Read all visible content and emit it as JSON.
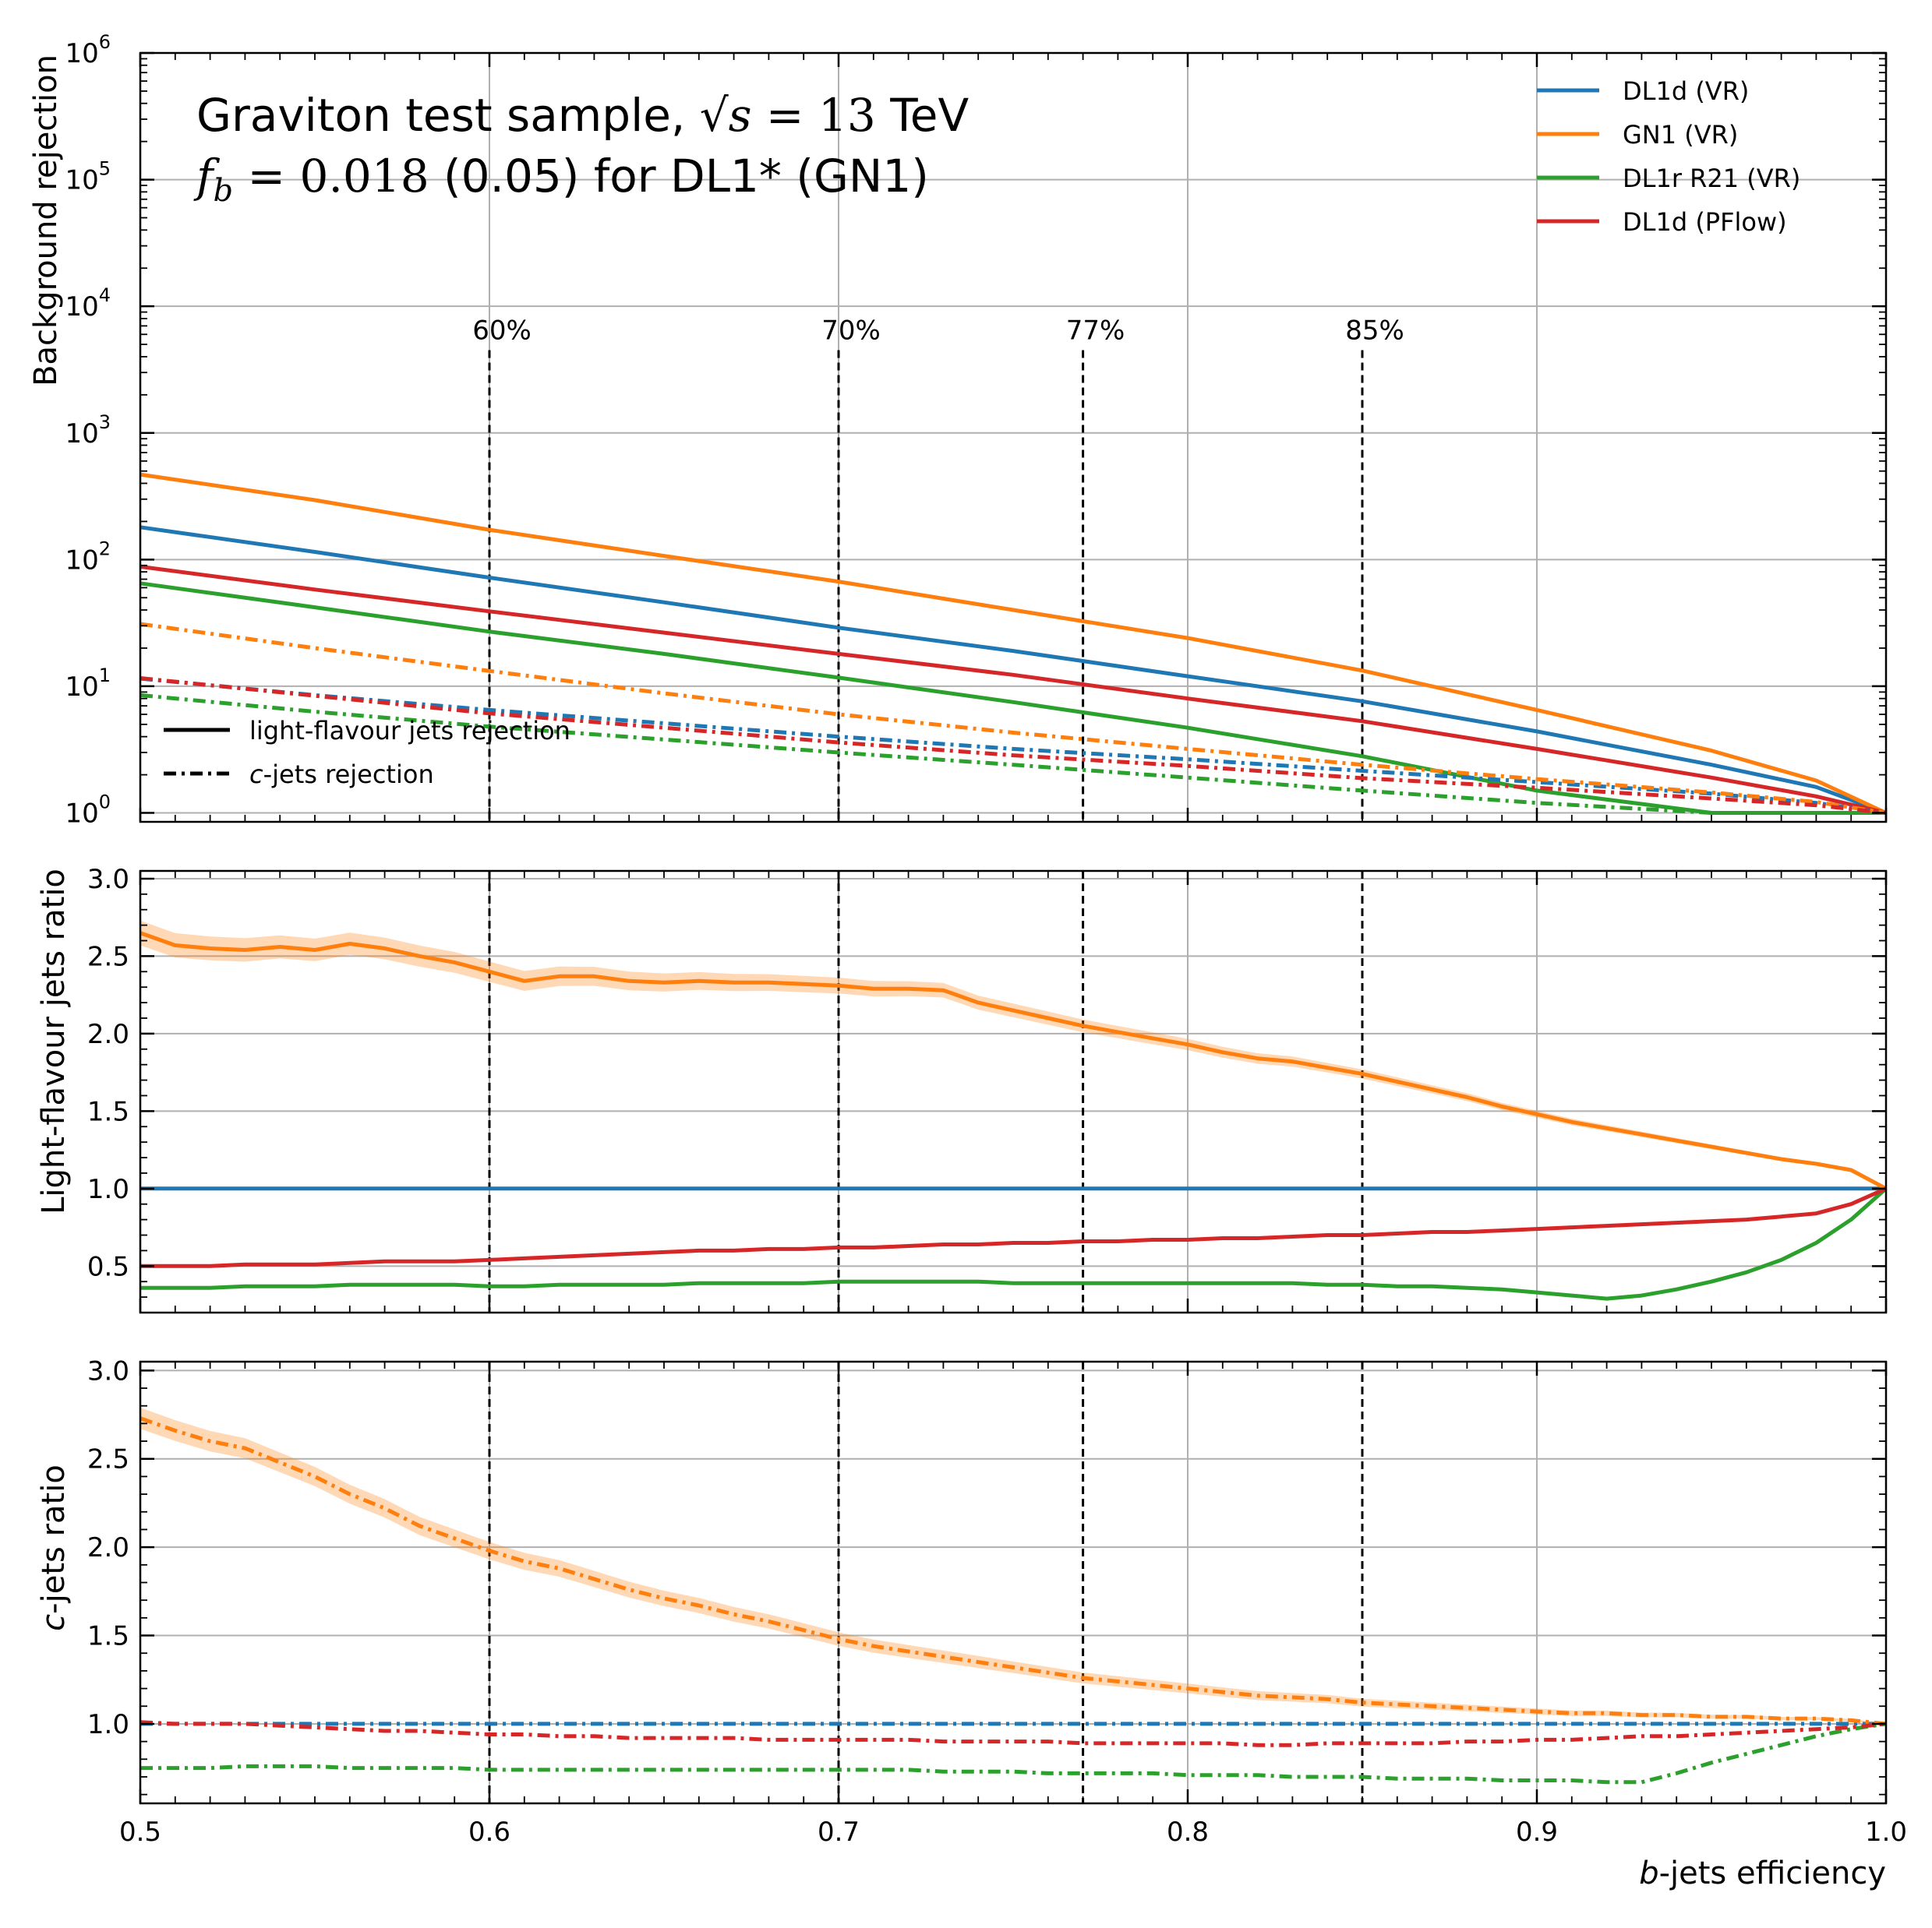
{
  "chart_data": [
    {
      "type": "line",
      "panel": "top",
      "title_lines": [
        "Graviton test sample, √s = 13 TeV",
        "f_b = 0.018 (0.05) for DL1* (GN1)"
      ],
      "xlabel": "",
      "ylabel": "Background rejection",
      "xlim": [
        0.5,
        1.0
      ],
      "ylim": [
        0.85,
        1000000
      ],
      "yscale": "log",
      "grid": true,
      "y_ticks": [
        "10^0",
        "10^1",
        "10^2",
        "10^3",
        "10^4",
        "10^5",
        "10^6"
      ],
      "working_points": [
        {
          "x": 0.6,
          "label": "60%"
        },
        {
          "x": 0.7,
          "label": "70%"
        },
        {
          "x": 0.77,
          "label": "77%"
        },
        {
          "x": 0.85,
          "label": "85%"
        }
      ],
      "legend": {
        "position": "top-right",
        "entries": [
          {
            "label": "DL1d (VR)",
            "color": "#1f77b4"
          },
          {
            "label": "GN1 (VR)",
            "color": "#ff7f0e"
          },
          {
            "label": "DL1r R21 (VR)",
            "color": "#2ca02c"
          },
          {
            "label": "DL1d (PFlow)",
            "color": "#d62728"
          }
        ]
      },
      "style_legend": {
        "position": "bottom-left",
        "entries": [
          {
            "label": "light-flavour jets rejection",
            "style": "solid"
          },
          {
            "label": "c-jets rejection",
            "style": "dashdot"
          }
        ]
      },
      "x": [
        0.5,
        0.55,
        0.6,
        0.65,
        0.7,
        0.75,
        0.8,
        0.85,
        0.9,
        0.95,
        0.98,
        1.0
      ],
      "series": [
        {
          "name": "DL1d (VR)",
          "style": "solid",
          "color": "#1f77b4",
          "values": [
            180,
            115,
            72,
            46,
            29,
            19,
            12,
            7.6,
            4.4,
            2.4,
            1.6,
            1.0
          ]
        },
        {
          "name": "GN1 (VR)",
          "style": "solid",
          "color": "#ff7f0e",
          "values": [
            470,
            295,
            172,
            107,
            67,
            40,
            24,
            13.3,
            6.5,
            3.1,
            1.8,
            1.0
          ]
        },
        {
          "name": "DL1r R21 (VR)",
          "style": "solid",
          "color": "#2ca02c",
          "values": [
            65,
            42,
            27,
            18,
            11.7,
            7.5,
            4.7,
            2.8,
            1.5,
            1.0,
            1.0,
            1.0
          ]
        },
        {
          "name": "DL1d (PFlow)",
          "style": "solid",
          "color": "#d62728",
          "values": [
            88,
            58,
            39,
            26.5,
            18,
            12.3,
            8.0,
            5.3,
            3.2,
            1.9,
            1.35,
            1.0
          ]
        },
        {
          "name": "DL1d (VR)",
          "style": "dashdot",
          "color": "#1f77b4",
          "values": [
            11.5,
            8.5,
            6.5,
            5.1,
            4.0,
            3.2,
            2.65,
            2.15,
            1.75,
            1.42,
            1.2,
            1.0
          ]
        },
        {
          "name": "GN1 (VR)",
          "style": "dashdot",
          "color": "#ff7f0e",
          "values": [
            31,
            20,
            13.2,
            8.8,
            6.0,
            4.3,
            3.2,
            2.4,
            1.85,
            1.45,
            1.22,
            1.0
          ]
        },
        {
          "name": "DL1r R21 (VR)",
          "style": "dashdot",
          "color": "#2ca02c",
          "values": [
            8.5,
            6.3,
            4.8,
            3.8,
            3.0,
            2.4,
            1.9,
            1.5,
            1.2,
            1.0,
            1.0,
            1.0
          ]
        },
        {
          "name": "DL1d (PFlow)",
          "style": "dashdot",
          "color": "#d62728",
          "values": [
            11.6,
            8.4,
            6.1,
            4.7,
            3.6,
            2.85,
            2.35,
            1.88,
            1.58,
            1.3,
            1.15,
            1.0
          ]
        }
      ]
    },
    {
      "type": "line",
      "panel": "middle",
      "xlabel": "",
      "ylabel": "Light-flavour jets ratio",
      "xlim": [
        0.5,
        1.0
      ],
      "ylim": [
        0.2,
        3.05
      ],
      "yscale": "linear",
      "grid": true,
      "y_ticks": [
        "0.5",
        "1.0",
        "1.5",
        "2.0",
        "2.5",
        "3.0"
      ],
      "x": [
        0.5,
        0.51,
        0.52,
        0.53,
        0.54,
        0.55,
        0.56,
        0.57,
        0.58,
        0.59,
        0.6,
        0.61,
        0.62,
        0.63,
        0.64,
        0.65,
        0.66,
        0.67,
        0.68,
        0.69,
        0.7,
        0.71,
        0.72,
        0.73,
        0.74,
        0.75,
        0.76,
        0.77,
        0.78,
        0.79,
        0.8,
        0.81,
        0.82,
        0.83,
        0.84,
        0.85,
        0.86,
        0.87,
        0.88,
        0.89,
        0.9,
        0.91,
        0.92,
        0.93,
        0.94,
        0.95,
        0.96,
        0.97,
        0.98,
        0.99,
        1.0
      ],
      "series": [
        {
          "name": "DL1d (VR)",
          "style": "solid",
          "color": "#1f77b4",
          "values": [
            1.0,
            1.0,
            1.0,
            1.0,
            1.0,
            1.0,
            1.0,
            1.0,
            1.0,
            1.0,
            1.0,
            1.0,
            1.0,
            1.0,
            1.0,
            1.0,
            1.0,
            1.0,
            1.0,
            1.0,
            1.0,
            1.0,
            1.0,
            1.0,
            1.0,
            1.0,
            1.0,
            1.0,
            1.0,
            1.0,
            1.0,
            1.0,
            1.0,
            1.0,
            1.0,
            1.0,
            1.0,
            1.0,
            1.0,
            1.0,
            1.0,
            1.0,
            1.0,
            1.0,
            1.0,
            1.0,
            1.0,
            1.0,
            1.0,
            1.0,
            1.0
          ]
        },
        {
          "name": "GN1 (VR)",
          "style": "solid",
          "color": "#ff7f0e",
          "band": 0.08,
          "values": [
            2.65,
            2.57,
            2.55,
            2.54,
            2.56,
            2.54,
            2.58,
            2.55,
            2.5,
            2.46,
            2.4,
            2.34,
            2.37,
            2.37,
            2.34,
            2.33,
            2.34,
            2.33,
            2.33,
            2.32,
            2.31,
            2.29,
            2.29,
            2.28,
            2.2,
            2.15,
            2.1,
            2.05,
            2.01,
            1.97,
            1.93,
            1.88,
            1.84,
            1.82,
            1.78,
            1.74,
            1.69,
            1.64,
            1.59,
            1.53,
            1.48,
            1.43,
            1.39,
            1.35,
            1.31,
            1.27,
            1.23,
            1.19,
            1.16,
            1.12,
            1.0
          ]
        },
        {
          "name": "DL1r R21 (VR)",
          "style": "solid",
          "color": "#2ca02c",
          "values": [
            0.36,
            0.36,
            0.36,
            0.37,
            0.37,
            0.37,
            0.38,
            0.38,
            0.38,
            0.38,
            0.37,
            0.37,
            0.38,
            0.38,
            0.38,
            0.38,
            0.39,
            0.39,
            0.39,
            0.39,
            0.4,
            0.4,
            0.4,
            0.4,
            0.4,
            0.39,
            0.39,
            0.39,
            0.39,
            0.39,
            0.39,
            0.39,
            0.39,
            0.39,
            0.38,
            0.38,
            0.37,
            0.37,
            0.36,
            0.35,
            0.33,
            0.31,
            0.29,
            0.31,
            0.35,
            0.4,
            0.46,
            0.54,
            0.65,
            0.8,
            1.0
          ]
        },
        {
          "name": "DL1d (PFlow)",
          "style": "solid",
          "color": "#d62728",
          "values": [
            0.5,
            0.5,
            0.5,
            0.51,
            0.51,
            0.51,
            0.52,
            0.53,
            0.53,
            0.53,
            0.54,
            0.55,
            0.56,
            0.57,
            0.58,
            0.59,
            0.6,
            0.6,
            0.61,
            0.61,
            0.62,
            0.62,
            0.63,
            0.64,
            0.64,
            0.65,
            0.65,
            0.66,
            0.66,
            0.67,
            0.67,
            0.68,
            0.68,
            0.69,
            0.7,
            0.7,
            0.71,
            0.72,
            0.72,
            0.73,
            0.74,
            0.75,
            0.76,
            0.77,
            0.78,
            0.79,
            0.8,
            0.82,
            0.84,
            0.9,
            1.0
          ]
        }
      ]
    },
    {
      "type": "line",
      "panel": "bottom",
      "xlabel": "b-jets efficiency",
      "ylabel": "c-jets ratio",
      "xlim": [
        0.5,
        1.0
      ],
      "ylim": [
        0.55,
        3.05
      ],
      "yscale": "linear",
      "grid": true,
      "x_ticks": [
        "0.5",
        "0.6",
        "0.7",
        "0.8",
        "0.9",
        "1.0"
      ],
      "y_ticks": [
        "1.0",
        "1.5",
        "2.0",
        "2.5",
        "3.0"
      ],
      "x": [
        0.5,
        0.51,
        0.52,
        0.53,
        0.54,
        0.55,
        0.56,
        0.57,
        0.58,
        0.59,
        0.6,
        0.61,
        0.62,
        0.63,
        0.64,
        0.65,
        0.66,
        0.67,
        0.68,
        0.69,
        0.7,
        0.71,
        0.72,
        0.73,
        0.74,
        0.75,
        0.76,
        0.77,
        0.78,
        0.79,
        0.8,
        0.81,
        0.82,
        0.83,
        0.84,
        0.85,
        0.86,
        0.87,
        0.88,
        0.89,
        0.9,
        0.91,
        0.92,
        0.93,
        0.94,
        0.95,
        0.96,
        0.97,
        0.98,
        0.99,
        1.0
      ],
      "series": [
        {
          "name": "DL1d (VR)",
          "style": "dashdot",
          "color": "#1f77b4",
          "values": [
            1.0,
            1.0,
            1.0,
            1.0,
            1.0,
            1.0,
            1.0,
            1.0,
            1.0,
            1.0,
            1.0,
            1.0,
            1.0,
            1.0,
            1.0,
            1.0,
            1.0,
            1.0,
            1.0,
            1.0,
            1.0,
            1.0,
            1.0,
            1.0,
            1.0,
            1.0,
            1.0,
            1.0,
            1.0,
            1.0,
            1.0,
            1.0,
            1.0,
            1.0,
            1.0,
            1.0,
            1.0,
            1.0,
            1.0,
            1.0,
            1.0,
            1.0,
            1.0,
            1.0,
            1.0,
            1.0,
            1.0,
            1.0,
            1.0,
            1.0,
            1.0
          ]
        },
        {
          "name": "GN1 (VR)",
          "style": "dashdot",
          "color": "#ff7f0e",
          "band": 0.06,
          "values": [
            2.73,
            2.66,
            2.6,
            2.56,
            2.48,
            2.4,
            2.3,
            2.22,
            2.12,
            2.05,
            1.98,
            1.92,
            1.88,
            1.82,
            1.76,
            1.71,
            1.67,
            1.62,
            1.58,
            1.53,
            1.48,
            1.44,
            1.41,
            1.38,
            1.35,
            1.32,
            1.29,
            1.26,
            1.24,
            1.22,
            1.2,
            1.18,
            1.16,
            1.15,
            1.14,
            1.12,
            1.11,
            1.1,
            1.09,
            1.08,
            1.07,
            1.06,
            1.06,
            1.05,
            1.05,
            1.04,
            1.04,
            1.03,
            1.03,
            1.02,
            1.0
          ]
        },
        {
          "name": "DL1r R21 (VR)",
          "style": "dashdot",
          "color": "#2ca02c",
          "values": [
            0.75,
            0.75,
            0.75,
            0.76,
            0.76,
            0.76,
            0.75,
            0.75,
            0.75,
            0.75,
            0.74,
            0.74,
            0.74,
            0.74,
            0.74,
            0.74,
            0.74,
            0.74,
            0.74,
            0.74,
            0.74,
            0.74,
            0.74,
            0.73,
            0.73,
            0.73,
            0.72,
            0.72,
            0.72,
            0.72,
            0.71,
            0.71,
            0.71,
            0.7,
            0.7,
            0.7,
            0.69,
            0.69,
            0.69,
            0.68,
            0.68,
            0.68,
            0.67,
            0.67,
            0.72,
            0.78,
            0.83,
            0.88,
            0.93,
            0.97,
            1.0
          ]
        },
        {
          "name": "DL1d (PFlow)",
          "style": "dashdot",
          "color": "#d62728",
          "values": [
            1.01,
            1.0,
            1.0,
            1.0,
            0.99,
            0.98,
            0.97,
            0.96,
            0.96,
            0.95,
            0.94,
            0.94,
            0.93,
            0.93,
            0.92,
            0.92,
            0.92,
            0.92,
            0.91,
            0.91,
            0.91,
            0.91,
            0.91,
            0.9,
            0.9,
            0.9,
            0.9,
            0.89,
            0.89,
            0.89,
            0.89,
            0.89,
            0.88,
            0.88,
            0.89,
            0.89,
            0.89,
            0.89,
            0.9,
            0.9,
            0.91,
            0.91,
            0.92,
            0.93,
            0.93,
            0.94,
            0.95,
            0.96,
            0.97,
            0.98,
            1.0
          ]
        }
      ]
    }
  ]
}
